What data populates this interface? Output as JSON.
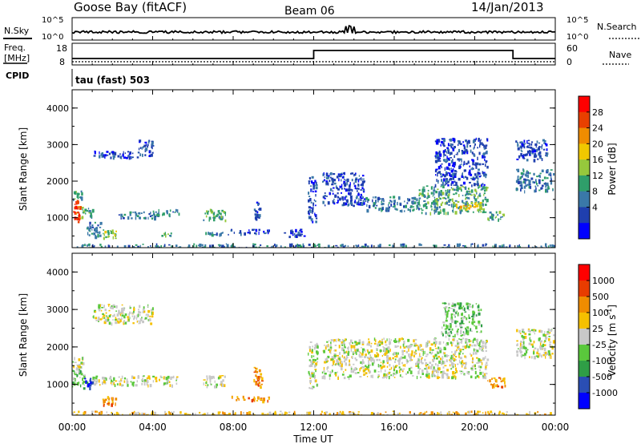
{
  "header": {
    "station": "Goose Bay (fitACF)",
    "beam": "Beam 06",
    "date": "14/Jan/2013"
  },
  "noise_panel": {
    "left_label": "N.Sky",
    "left_ticks": [
      "10^5",
      "10^0"
    ],
    "right_ticks": [
      "10^5",
      "10^0"
    ],
    "right_label": "N.Search",
    "n_sky_spikes_near_hours": [
      13.6,
      13.8,
      14.0
    ]
  },
  "freq_panel": {
    "left_label_line1": "Freq.",
    "left_label_line2": "[MHz]",
    "left_ticks": [
      "18",
      "8"
    ],
    "right_ticks": [
      "60",
      "0"
    ],
    "right_label": "Nave",
    "freq_segments": [
      {
        "start_h": 0.0,
        "end_h": 12.0,
        "level": "low"
      },
      {
        "start_h": 12.0,
        "end_h": 21.9,
        "level": "high"
      },
      {
        "start_h": 21.9,
        "end_h": 24.0,
        "level": "low"
      }
    ]
  },
  "cpid_panel": {
    "label": "CPID",
    "text": "tau (fast) 503"
  },
  "time_axis": {
    "title": "Time UT",
    "ticks": [
      "00:00",
      "04:00",
      "08:00",
      "12:00",
      "16:00",
      "20:00",
      "00:00"
    ],
    "range_hours": [
      0,
      24
    ]
  },
  "range_axis": {
    "label": "Slant Range [km]",
    "ticks": [
      "1000",
      "2000",
      "3000",
      "4000"
    ],
    "range_km": [
      180,
      4500
    ]
  },
  "power_colorbar": {
    "label": "Power [dB]",
    "ticks": [
      "4",
      "8",
      "12",
      "16",
      "20",
      "24",
      "28"
    ],
    "colors": [
      "#0000ff",
      "#1f3fae",
      "#3a78a8",
      "#2f9e6a",
      "#96c83c",
      "#f0c800",
      "#f08c00",
      "#e84000",
      "#ff0000"
    ]
  },
  "velocity_colorbar": {
    "label": "Velocity [m s",
    "label_sup": "-1",
    "label_close": "]",
    "ticks": [
      "1000",
      "500",
      "100",
      "25",
      "-25",
      "-100",
      "-500",
      "-1000"
    ],
    "colors": [
      "#0000ff",
      "#2a4eb4",
      "#2f9e46",
      "#5ac83c",
      "#c8c8c8",
      "#f5c000",
      "#f08c00",
      "#e83c00",
      "#ff0000"
    ]
  },
  "chart_data": [
    {
      "type": "heatmap",
      "title": "Power",
      "xlabel": "Time UT",
      "ylabel": "Slant Range [km]",
      "xlim": [
        0,
        24
      ],
      "ylim": [
        180,
        4500
      ],
      "colorbar": "Power [dB]",
      "regions": [
        {
          "t0": 0.0,
          "t1": 0.45,
          "r0": 900,
          "r1": 1500,
          "cls": 7
        },
        {
          "t0": 0.0,
          "t1": 0.45,
          "r0": 1500,
          "r1": 1750,
          "cls": 3
        },
        {
          "t0": 0.45,
          "t1": 1.0,
          "r0": 1000,
          "r1": 1300,
          "cls": 3
        },
        {
          "t0": 1.0,
          "t1": 3.3,
          "r0": 2650,
          "r1": 2850,
          "cls": 1
        },
        {
          "t0": 3.3,
          "t1": 4.0,
          "r0": 2700,
          "r1": 3150,
          "cls": 1
        },
        {
          "t0": 1.5,
          "t1": 2.2,
          "r0": 450,
          "r1": 700,
          "cls": 4
        },
        {
          "t0": 0.7,
          "t1": 1.4,
          "r0": 500,
          "r1": 900,
          "cls": 2
        },
        {
          "t0": 2.3,
          "t1": 4.2,
          "r0": 1000,
          "r1": 1180,
          "cls": 2
        },
        {
          "t0": 4.0,
          "t1": 5.3,
          "r0": 1100,
          "r1": 1250,
          "cls": 2
        },
        {
          "t0": 4.4,
          "t1": 4.9,
          "r0": 520,
          "r1": 620,
          "cls": 3
        },
        {
          "t0": 6.5,
          "t1": 7.6,
          "r0": 950,
          "r1": 1250,
          "cls": 3
        },
        {
          "t0": 6.6,
          "t1": 7.8,
          "r0": 550,
          "r1": 620,
          "cls": 2
        },
        {
          "t0": 7.8,
          "t1": 9.8,
          "r0": 580,
          "r1": 700,
          "cls": 1
        },
        {
          "t0": 9.0,
          "t1": 9.3,
          "r0": 950,
          "r1": 1500,
          "cls": 1
        },
        {
          "t0": 10.5,
          "t1": 11.5,
          "r0": 500,
          "r1": 700,
          "cls": 1
        },
        {
          "t0": 11.7,
          "t1": 12.1,
          "r0": 900,
          "r1": 2200,
          "cls": 1
        },
        {
          "t0": 12.4,
          "t1": 14.5,
          "r0": 1350,
          "r1": 2250,
          "cls": 1
        },
        {
          "t0": 14.5,
          "t1": 17.2,
          "r0": 1200,
          "r1": 1600,
          "cls": 2
        },
        {
          "t0": 17.2,
          "t1": 20.6,
          "r0": 1150,
          "r1": 1900,
          "cls": 3
        },
        {
          "t0": 19.0,
          "t1": 20.3,
          "r0": 1200,
          "r1": 1450,
          "cls": 5
        },
        {
          "t0": 18.0,
          "t1": 20.6,
          "r0": 1900,
          "r1": 3200,
          "cls": 1
        },
        {
          "t0": 20.6,
          "t1": 21.5,
          "r0": 950,
          "r1": 1200,
          "cls": 3
        },
        {
          "t0": 22.0,
          "t1": 23.9,
          "r0": 1750,
          "r1": 2350,
          "cls": 2
        },
        {
          "t0": 22.0,
          "t1": 23.6,
          "r0": 2600,
          "r1": 3150,
          "cls": 1
        },
        {
          "t0": 0.0,
          "t1": 24.0,
          "r0": 180,
          "r1": 300,
          "cls": 2
        }
      ]
    },
    {
      "type": "heatmap",
      "title": "Velocity",
      "xlabel": "Time UT",
      "ylabel": "Slant Range [km]",
      "xlim": [
        0,
        24
      ],
      "ylim": [
        180,
        4500
      ],
      "colorbar": "Velocity [m s-1]",
      "regions": [
        {
          "t0": 0.0,
          "t1": 0.6,
          "r0": 900,
          "r1": 1450,
          "cls": 3
        },
        {
          "t0": 0.0,
          "t1": 0.6,
          "r0": 1450,
          "r1": 1750,
          "cls": 4
        },
        {
          "t0": 0.6,
          "t1": 1.0,
          "r0": 900,
          "r1": 1200,
          "cls": 1
        },
        {
          "t0": 1.0,
          "t1": 4.0,
          "r0": 2650,
          "r1": 3150,
          "cls": 4
        },
        {
          "t0": 1.5,
          "t1": 2.2,
          "r0": 450,
          "r1": 700,
          "cls": 6
        },
        {
          "t0": 1.0,
          "t1": 5.3,
          "r0": 1000,
          "r1": 1250,
          "cls": 4
        },
        {
          "t0": 6.5,
          "t1": 7.6,
          "r0": 950,
          "r1": 1250,
          "cls": 4
        },
        {
          "t0": 9.0,
          "t1": 9.4,
          "r0": 950,
          "r1": 1500,
          "cls": 6
        },
        {
          "t0": 7.8,
          "t1": 9.8,
          "r0": 580,
          "r1": 700,
          "cls": 6
        },
        {
          "t0": 11.7,
          "t1": 12.2,
          "r0": 900,
          "r1": 2200,
          "cls": 4
        },
        {
          "t0": 12.4,
          "t1": 20.6,
          "r0": 1200,
          "r1": 2250,
          "cls": 4
        },
        {
          "t0": 18.3,
          "t1": 20.3,
          "r0": 2300,
          "r1": 3200,
          "cls": 3
        },
        {
          "t0": 20.6,
          "t1": 21.5,
          "r0": 950,
          "r1": 1200,
          "cls": 6
        },
        {
          "t0": 22.0,
          "t1": 23.9,
          "r0": 1750,
          "r1": 2500,
          "cls": 4
        },
        {
          "t0": 0.0,
          "t1": 24.0,
          "r0": 180,
          "r1": 300,
          "cls": 5
        }
      ]
    }
  ]
}
